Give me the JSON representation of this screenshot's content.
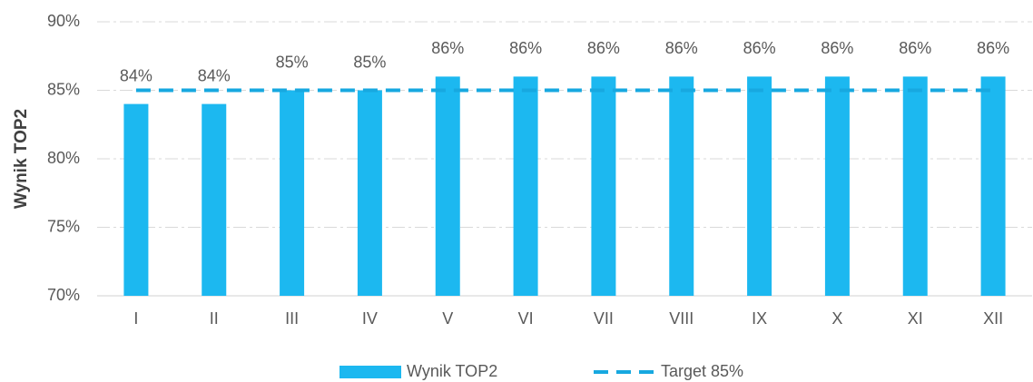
{
  "chart_data": {
    "type": "bar",
    "y_label": "Wynik TOP2",
    "categories": [
      "I",
      "II",
      "III",
      "IV",
      "V",
      "VI",
      "VII",
      "VIII",
      "IX",
      "X",
      "XI",
      "XII"
    ],
    "series": [
      {
        "name": "Wynik TOP2",
        "type": "bar",
        "color": "#1cb8f0",
        "values": [
          84,
          84,
          85,
          85,
          86,
          86,
          86,
          86,
          86,
          86,
          86,
          86
        ],
        "value_labels": [
          "84%",
          "84%",
          "85%",
          "85%",
          "86%",
          "86%",
          "86%",
          "86%",
          "86%",
          "86%",
          "86%",
          "86%"
        ]
      },
      {
        "name": "Target 85%",
        "type": "line",
        "dashed": true,
        "color": "#17a8e0",
        "values": [
          85,
          85,
          85,
          85,
          85,
          85,
          85,
          85,
          85,
          85,
          85,
          85
        ]
      }
    ],
    "ylim": [
      70,
      90
    ],
    "yticks": [
      {
        "value": 70,
        "label": "70%"
      },
      {
        "value": 75,
        "label": "75%"
      },
      {
        "value": 80,
        "label": "80%"
      },
      {
        "value": 85,
        "label": "85%"
      },
      {
        "value": 90,
        "label": "90%"
      }
    ],
    "grid": true,
    "legend": "bottom"
  }
}
